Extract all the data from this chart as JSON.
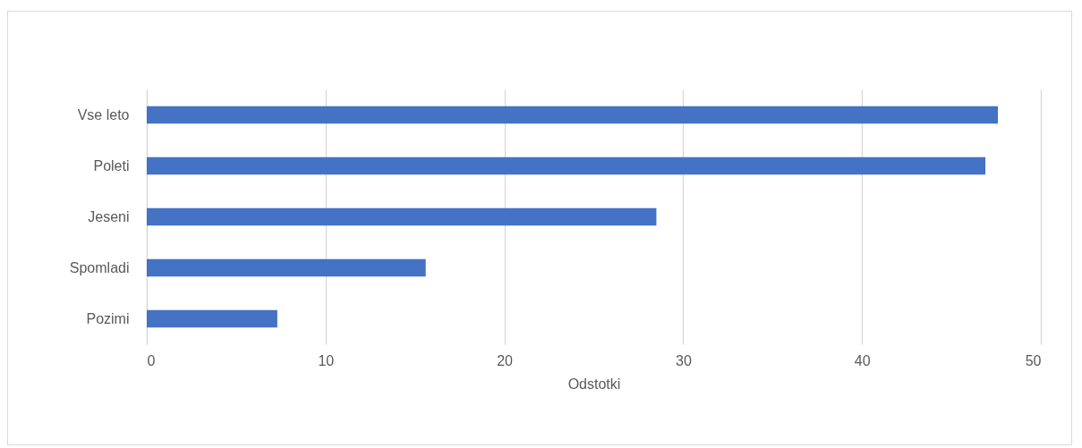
{
  "chart_data": {
    "type": "bar",
    "orientation": "horizontal",
    "categories": [
      "Vse leto",
      "Poleti",
      "Jeseni",
      "Spomladi",
      "Pozimi"
    ],
    "values": [
      47.6,
      46.9,
      28.5,
      15.6,
      7.3
    ],
    "color": "#4472c4",
    "xlabel": "Odstotki",
    "xlim": [
      0,
      50
    ],
    "xticks": [
      0,
      10,
      20,
      30,
      40,
      50
    ],
    "grid": "x"
  }
}
